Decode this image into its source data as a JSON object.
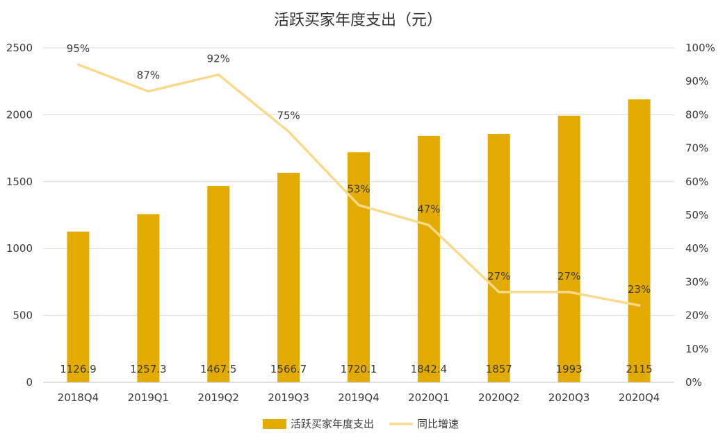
{
  "chart_data": {
    "type": "bar",
    "title": "活跃买家年度支出（元）",
    "categories": [
      "2018Q4",
      "2019Q1",
      "2019Q2",
      "2019Q3",
      "2019Q4",
      "2020Q1",
      "2020Q2",
      "2020Q3",
      "2020Q4"
    ],
    "series": [
      {
        "name": "活跃买家年度支出",
        "type": "bar",
        "axis": "left",
        "color": "#E3AB00",
        "values": [
          1126.9,
          1257.3,
          1467.5,
          1566.7,
          1720.1,
          1842.4,
          1857,
          1993,
          2115
        ],
        "labels": [
          "1126.9",
          "1257.3",
          "1467.5",
          "1566.7",
          "1720.1",
          "1842.4",
          "1857",
          "1993",
          "2115"
        ]
      },
      {
        "name": "同比增速",
        "type": "line",
        "axis": "right",
        "color": "#F9D98A",
        "values": [
          95,
          87,
          92,
          75,
          53,
          47,
          27,
          27,
          23
        ],
        "labels": [
          "95%",
          "87%",
          "92%",
          "75%",
          "53%",
          "47%",
          "27%",
          "27%",
          "23%"
        ]
      }
    ],
    "y_left": {
      "ylim": [
        0,
        2500
      ],
      "ticks": [
        "0",
        "500",
        "1000",
        "1500",
        "2000",
        "2500"
      ],
      "tick_values": [
        0,
        500,
        1000,
        1500,
        2000,
        2500
      ]
    },
    "y_right": {
      "ylim": [
        0,
        100
      ],
      "ticks": [
        "0%",
        "10%",
        "20%",
        "30%",
        "40%",
        "50%",
        "60%",
        "70%",
        "80%",
        "90%",
        "100%"
      ],
      "tick_values": [
        0,
        10,
        20,
        30,
        40,
        50,
        60,
        70,
        80,
        90,
        100
      ]
    },
    "grid": true,
    "legend_position": "bottom-center",
    "colors": {
      "bar": "#E3AB00",
      "line": "#F9D98A",
      "grid": "#d9d9d9",
      "text": "#3a3a3a"
    }
  }
}
